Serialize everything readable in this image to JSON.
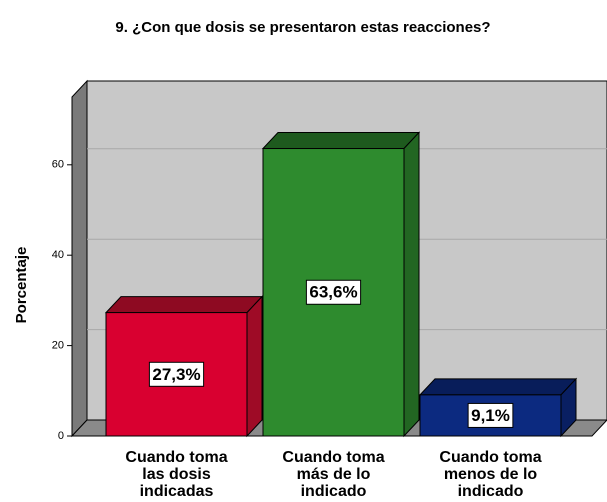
{
  "chart_data": {
    "type": "bar3d",
    "title": "9. ¿Con que dosis se presentaron estas reacciones?",
    "ylabel": "Porcentaje",
    "categories": [
      [
        "Cuando toma",
        "las dosis",
        "indicadas"
      ],
      [
        "Cuando toma",
        "más de lo",
        "indicado"
      ],
      [
        "Cuando toma",
        "menos de lo",
        "indicado"
      ]
    ],
    "values": [
      27.3,
      63.6,
      9.1
    ],
    "value_labels": [
      "27,3%",
      "63,6%",
      "9,1%"
    ],
    "colors": [
      "#d90030",
      "#2e8b2e",
      "#0c2a80"
    ],
    "top_colors": [
      "#8e0a22",
      "#1e5a1e",
      "#081d5a"
    ],
    "side_colors": [
      "#9e0b26",
      "#226622",
      "#091f62"
    ],
    "ylim": [
      0,
      75
    ],
    "yticks": [
      0,
      20,
      40,
      60
    ],
    "grid": true
  }
}
